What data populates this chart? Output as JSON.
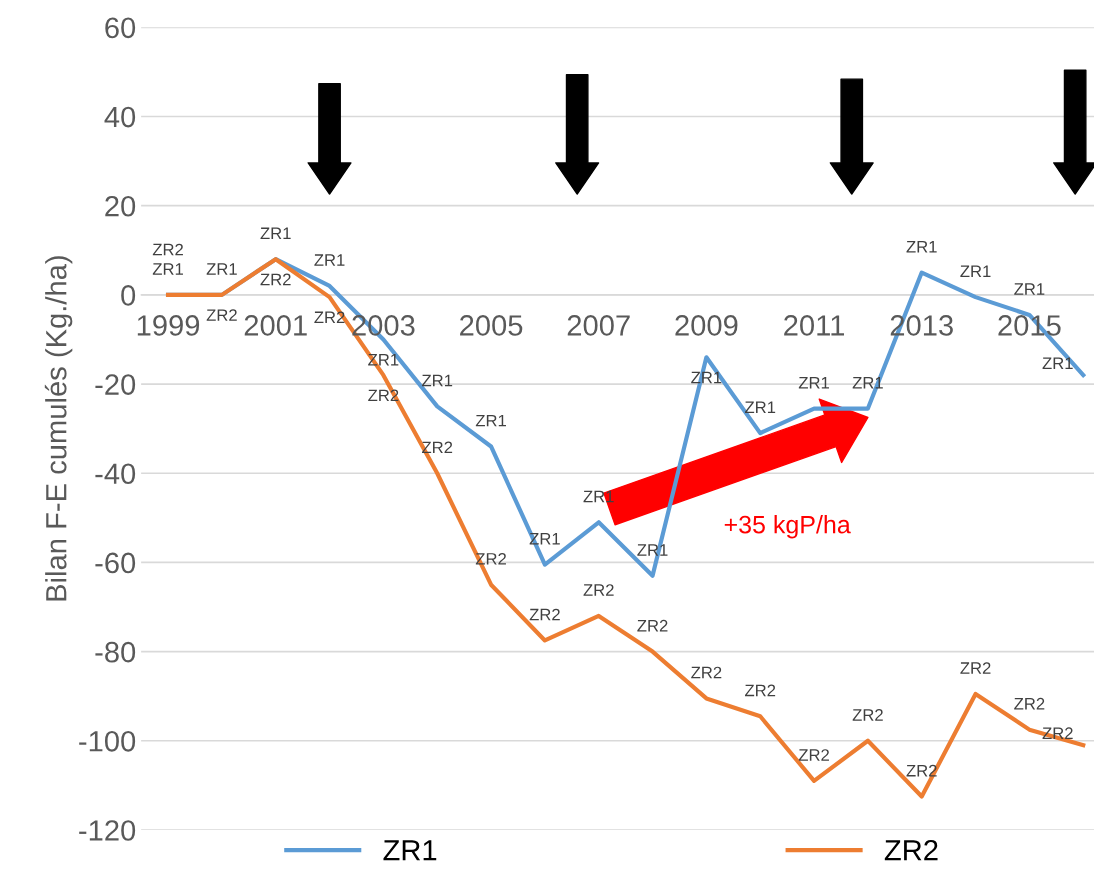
{
  "chart_data": {
    "type": "line",
    "ylabel": "Bilan F-E cumulés (Kg./ha)",
    "categories": [
      "1999",
      null,
      "2001",
      null,
      "2003",
      null,
      "2005",
      null,
      "2007",
      null,
      "2009",
      null,
      "2011",
      null,
      "2013",
      null,
      "2015",
      null
    ],
    "series": [
      {
        "name": "ZR1",
        "color": "#5b9bd5",
        "values": [
          0,
          0,
          8,
          2,
          -10,
          -25,
          -34,
          -60.5,
          -51,
          -63,
          -14,
          -31,
          -25.5,
          -25.5,
          5,
          -0.5,
          -4.5,
          -18
        ],
        "value_labels": [
          "ZR1",
          "ZR1",
          "ZR1",
          "ZR1",
          "ZR1",
          "ZR1",
          "ZR1",
          "ZR1",
          "ZR1",
          "ZR1",
          "ZR1",
          "ZR1",
          "ZR1",
          "ZR1",
          "ZR1",
          "ZR1",
          "ZR1",
          "ZR1"
        ]
      },
      {
        "name": "ZR2",
        "color": "#ed7d31",
        "values": [
          0,
          0,
          8,
          -0.5,
          -18,
          -40,
          -65,
          -77.5,
          -72,
          -80,
          -90.5,
          -94.5,
          -109,
          -100,
          -112.5,
          -89.5,
          -97.5,
          -101
        ],
        "value_labels": [
          "ZR2",
          "ZR2",
          "ZR2",
          "ZR2",
          "ZR2",
          "ZR2",
          "ZR2",
          "ZR2",
          "ZR2",
          "ZR2",
          "ZR2",
          "ZR2",
          "ZR2",
          "ZR2",
          "ZR2",
          "ZR2",
          "ZR2",
          "ZR2"
        ]
      }
    ],
    "ylim": [
      -120,
      60
    ],
    "yticks": [
      -120,
      -100,
      -80,
      -60,
      -40,
      -20,
      0,
      20,
      40,
      60
    ],
    "grid": "y",
    "legend": "bottom",
    "marker": "none",
    "line_style": "solid",
    "annotations": [
      "+35 kgP/ha"
    ]
  }
}
